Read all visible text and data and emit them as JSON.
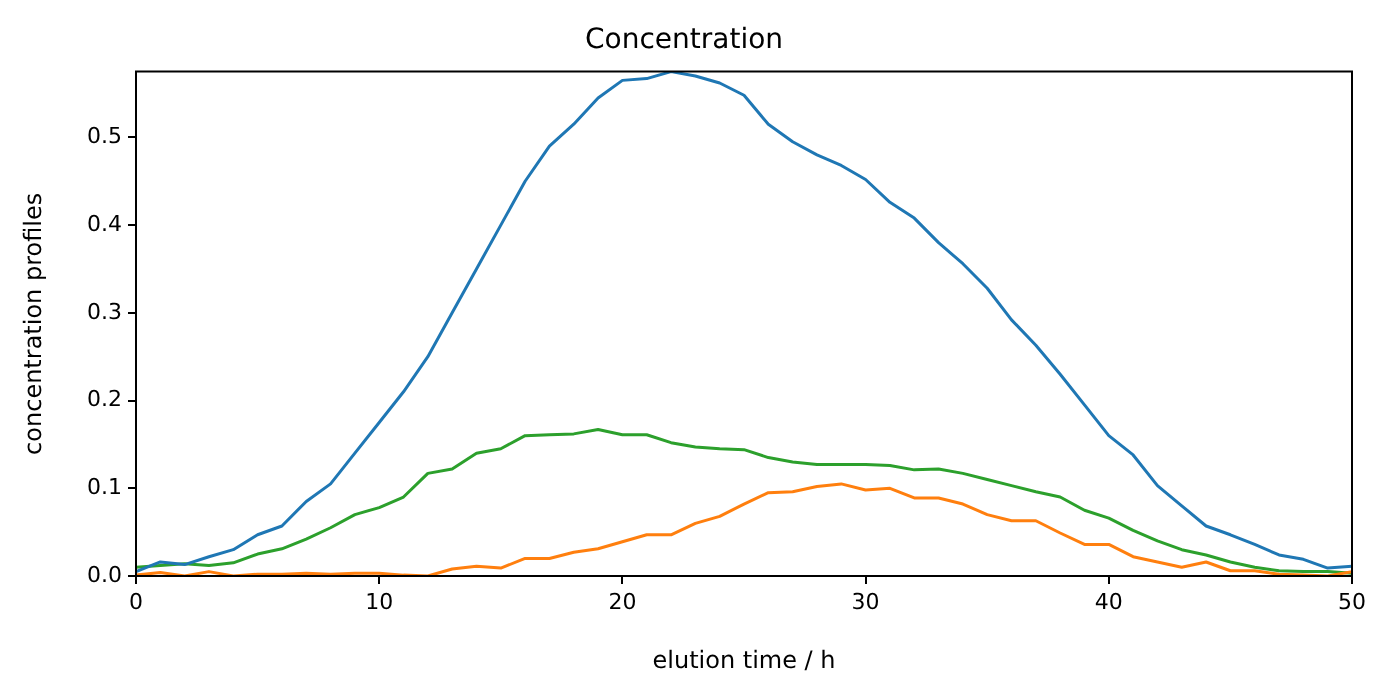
{
  "chart_data": {
    "type": "line",
    "title": "Concentration",
    "xlabel": "elution time / h",
    "ylabel": "concentration profiles",
    "x": [
      0,
      1,
      2,
      3,
      4,
      5,
      6,
      7,
      8,
      9,
      10,
      11,
      12,
      13,
      14,
      15,
      16,
      17,
      18,
      19,
      20,
      21,
      22,
      23,
      24,
      25,
      26,
      27,
      28,
      29,
      30,
      31,
      32,
      33,
      34,
      35,
      36,
      37,
      38,
      39,
      40,
      41,
      42,
      43,
      44,
      45,
      46,
      47,
      48,
      49,
      50
    ],
    "series": [
      {
        "color": "#1f77b4",
        "values": [
          0.005,
          0.016,
          0.013,
          0.022,
          0.03,
          0.047,
          0.057,
          0.085,
          0.105,
          0.14,
          0.175,
          0.21,
          0.25,
          0.3,
          0.35,
          0.4,
          0.45,
          0.49,
          0.515,
          0.545,
          0.565,
          0.567,
          0.575,
          0.57,
          0.562,
          0.548,
          0.515,
          0.495,
          0.48,
          0.468,
          0.452,
          0.426,
          0.408,
          0.38,
          0.356,
          0.328,
          0.292,
          0.263,
          0.23,
          0.195,
          0.16,
          0.138,
          0.103,
          0.08,
          0.057,
          0.047,
          0.036,
          0.024,
          0.019,
          0.009,
          0.011
        ]
      },
      {
        "color": "#ff7f0e",
        "values": [
          0.001,
          0.004,
          0,
          0.005,
          0,
          0.002,
          0.002,
          0.003,
          0.002,
          0.003,
          0.003,
          0.001,
          0,
          0.008,
          0.011,
          0.009,
          0.02,
          0.02,
          0.027,
          0.031,
          0.039,
          0.047,
          0.047,
          0.06,
          0.068,
          0.082,
          0.095,
          0.096,
          0.102,
          0.105,
          0.098,
          0.1,
          0.089,
          0.089,
          0.082,
          0.07,
          0.063,
          0.063,
          0.049,
          0.036,
          0.036,
          0.022,
          0.016,
          0.01,
          0.016,
          0.006,
          0.006,
          0.002,
          0.001,
          0,
          0.005
        ]
      },
      {
        "color": "#2ca02c",
        "values": [
          0.01,
          0.012,
          0.014,
          0.012,
          0.015,
          0.025,
          0.031,
          0.042,
          0.055,
          0.07,
          0.078,
          0.09,
          0.117,
          0.122,
          0.14,
          0.145,
          0.16,
          0.161,
          0.162,
          0.167,
          0.161,
          0.161,
          0.152,
          0.147,
          0.145,
          0.144,
          0.135,
          0.13,
          0.127,
          0.127,
          0.127,
          0.126,
          0.121,
          0.122,
          0.117,
          0.11,
          0.103,
          0.096,
          0.09,
          0.075,
          0.066,
          0.052,
          0.04,
          0.03,
          0.024,
          0.016,
          0.01,
          0.006,
          0.005,
          0.005,
          0.003
        ]
      }
    ],
    "xlim": [
      0,
      50
    ],
    "xticks": [
      0,
      10,
      20,
      30,
      40,
      50
    ],
    "ylim": [
      0,
      0.575
    ],
    "yticks": [
      {
        "value": 0,
        "label": "0.0"
      },
      0.1,
      0.2,
      0.3,
      0.4,
      0.5
    ],
    "grid": false,
    "legend": false
  }
}
